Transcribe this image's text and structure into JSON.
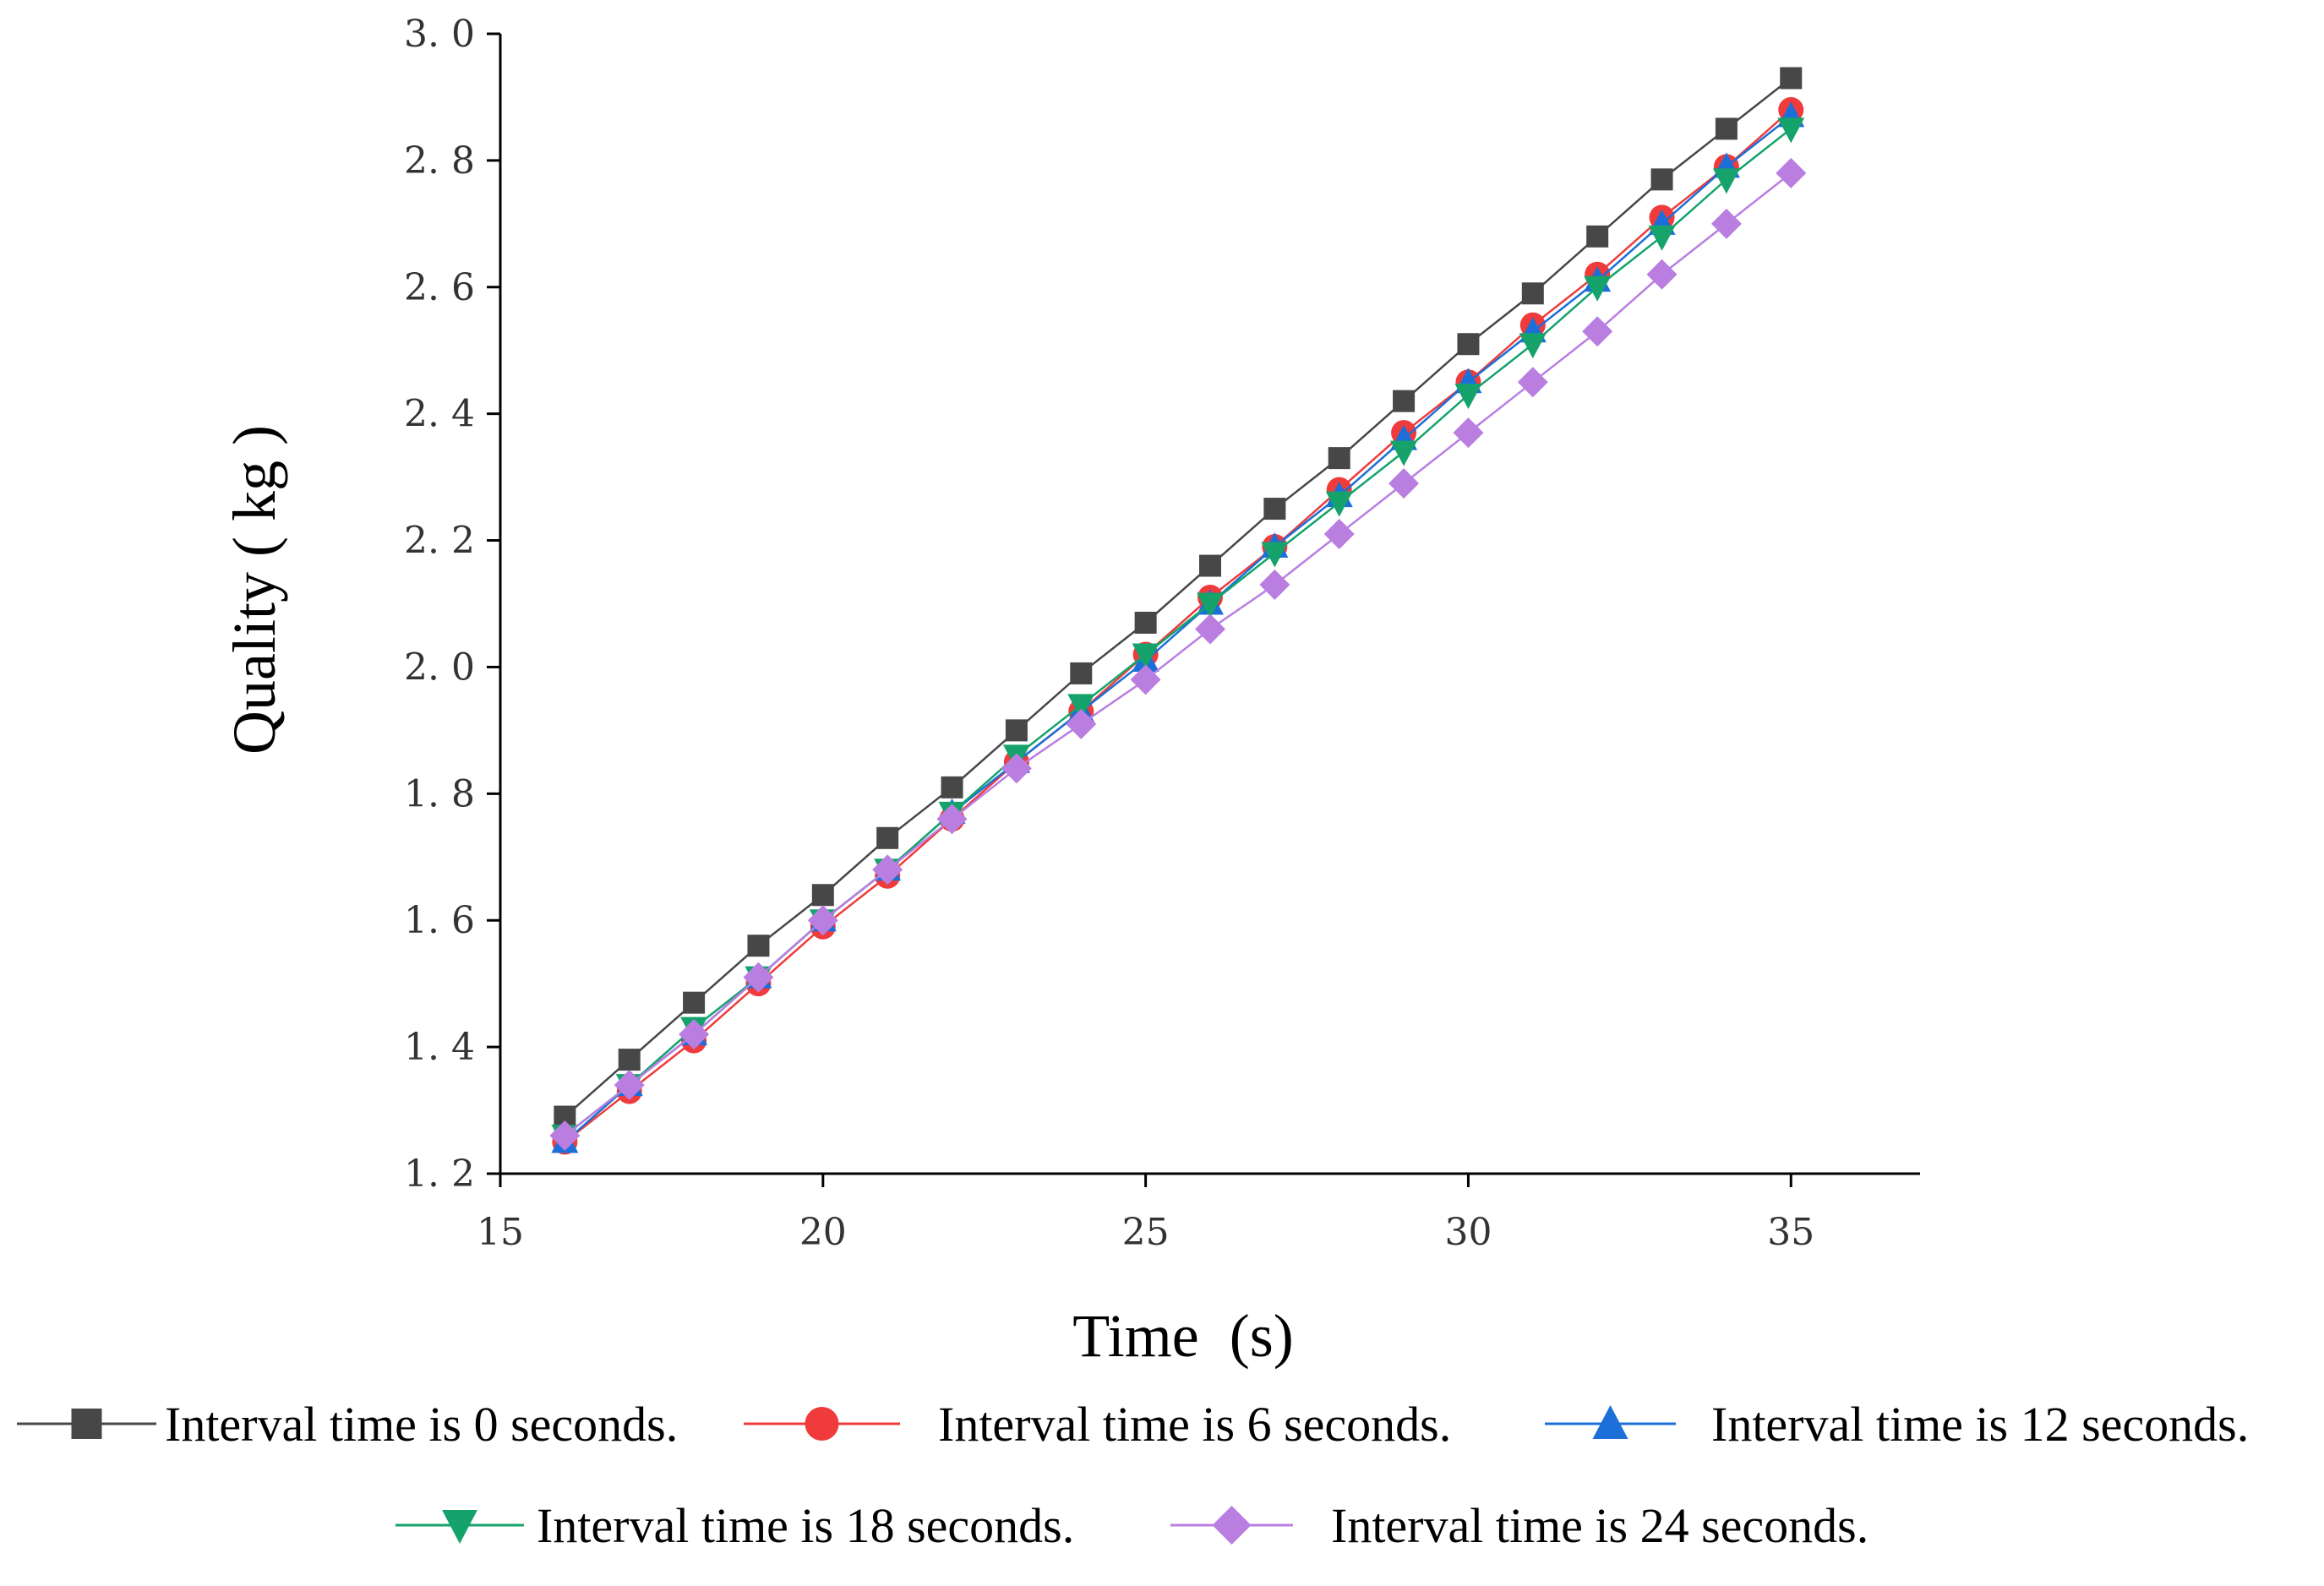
{
  "chart_data": {
    "type": "line",
    "title": "",
    "xlabel": "Time  (s)",
    "ylabel": "Quality ( kg )",
    "xlim": [
      15,
      37
    ],
    "ylim": [
      1.2,
      3.0
    ],
    "x_ticks": [
      "15",
      "20",
      "25",
      "30",
      "35"
    ],
    "y_ticks": [
      "1. 2",
      "1. 4",
      "1. 6",
      "1. 8",
      "2. 0",
      "2. 2",
      "2. 4",
      "2. 6",
      "2. 8",
      "3. 0"
    ],
    "x": [
      16,
      17,
      18,
      19,
      20,
      21,
      22,
      23,
      24,
      25,
      26,
      27,
      28,
      29,
      30,
      31,
      32,
      33,
      34,
      35
    ],
    "series": [
      {
        "name": "Interval time is 0 seconds.",
        "color": "#474747",
        "marker": "square",
        "values": [
          1.29,
          1.38,
          1.47,
          1.56,
          1.64,
          1.73,
          1.81,
          1.9,
          1.99,
          2.07,
          2.16,
          2.25,
          2.33,
          2.42,
          2.51,
          2.59,
          2.68,
          2.77,
          2.85,
          2.93
        ]
      },
      {
        "name": "Interval time is 6 seconds.",
        "color": "#ef3b3b",
        "marker": "circle",
        "values": [
          1.25,
          1.33,
          1.41,
          1.5,
          1.59,
          1.67,
          1.76,
          1.85,
          1.93,
          2.02,
          2.11,
          2.19,
          2.28,
          2.37,
          2.45,
          2.54,
          2.62,
          2.71,
          2.79,
          2.88
        ]
      },
      {
        "name": "Interval time is 12 seconds.",
        "color": "#1c6fd8",
        "marker": "triangle-up",
        "values": [
          1.25,
          1.34,
          1.42,
          1.51,
          1.6,
          1.68,
          1.77,
          1.85,
          1.93,
          2.01,
          2.1,
          2.19,
          2.27,
          2.36,
          2.45,
          2.53,
          2.61,
          2.7,
          2.79,
          2.87
        ]
      },
      {
        "name": "Interval time is 18 seconds.",
        "color": "#15a36b",
        "marker": "triangle-down",
        "values": [
          1.26,
          1.34,
          1.43,
          1.51,
          1.6,
          1.68,
          1.77,
          1.86,
          1.94,
          2.02,
          2.1,
          2.18,
          2.26,
          2.34,
          2.43,
          2.51,
          2.6,
          2.68,
          2.77,
          2.85
        ]
      },
      {
        "name": "Interval time is 24 seconds.",
        "color": "#b97ee0",
        "marker": "diamond",
        "values": [
          1.26,
          1.34,
          1.42,
          1.51,
          1.6,
          1.68,
          1.76,
          1.84,
          1.91,
          1.98,
          2.06,
          2.13,
          2.21,
          2.29,
          2.37,
          2.45,
          2.53,
          2.62,
          2.7,
          2.78
        ]
      }
    ],
    "legend_position": "bottom"
  }
}
